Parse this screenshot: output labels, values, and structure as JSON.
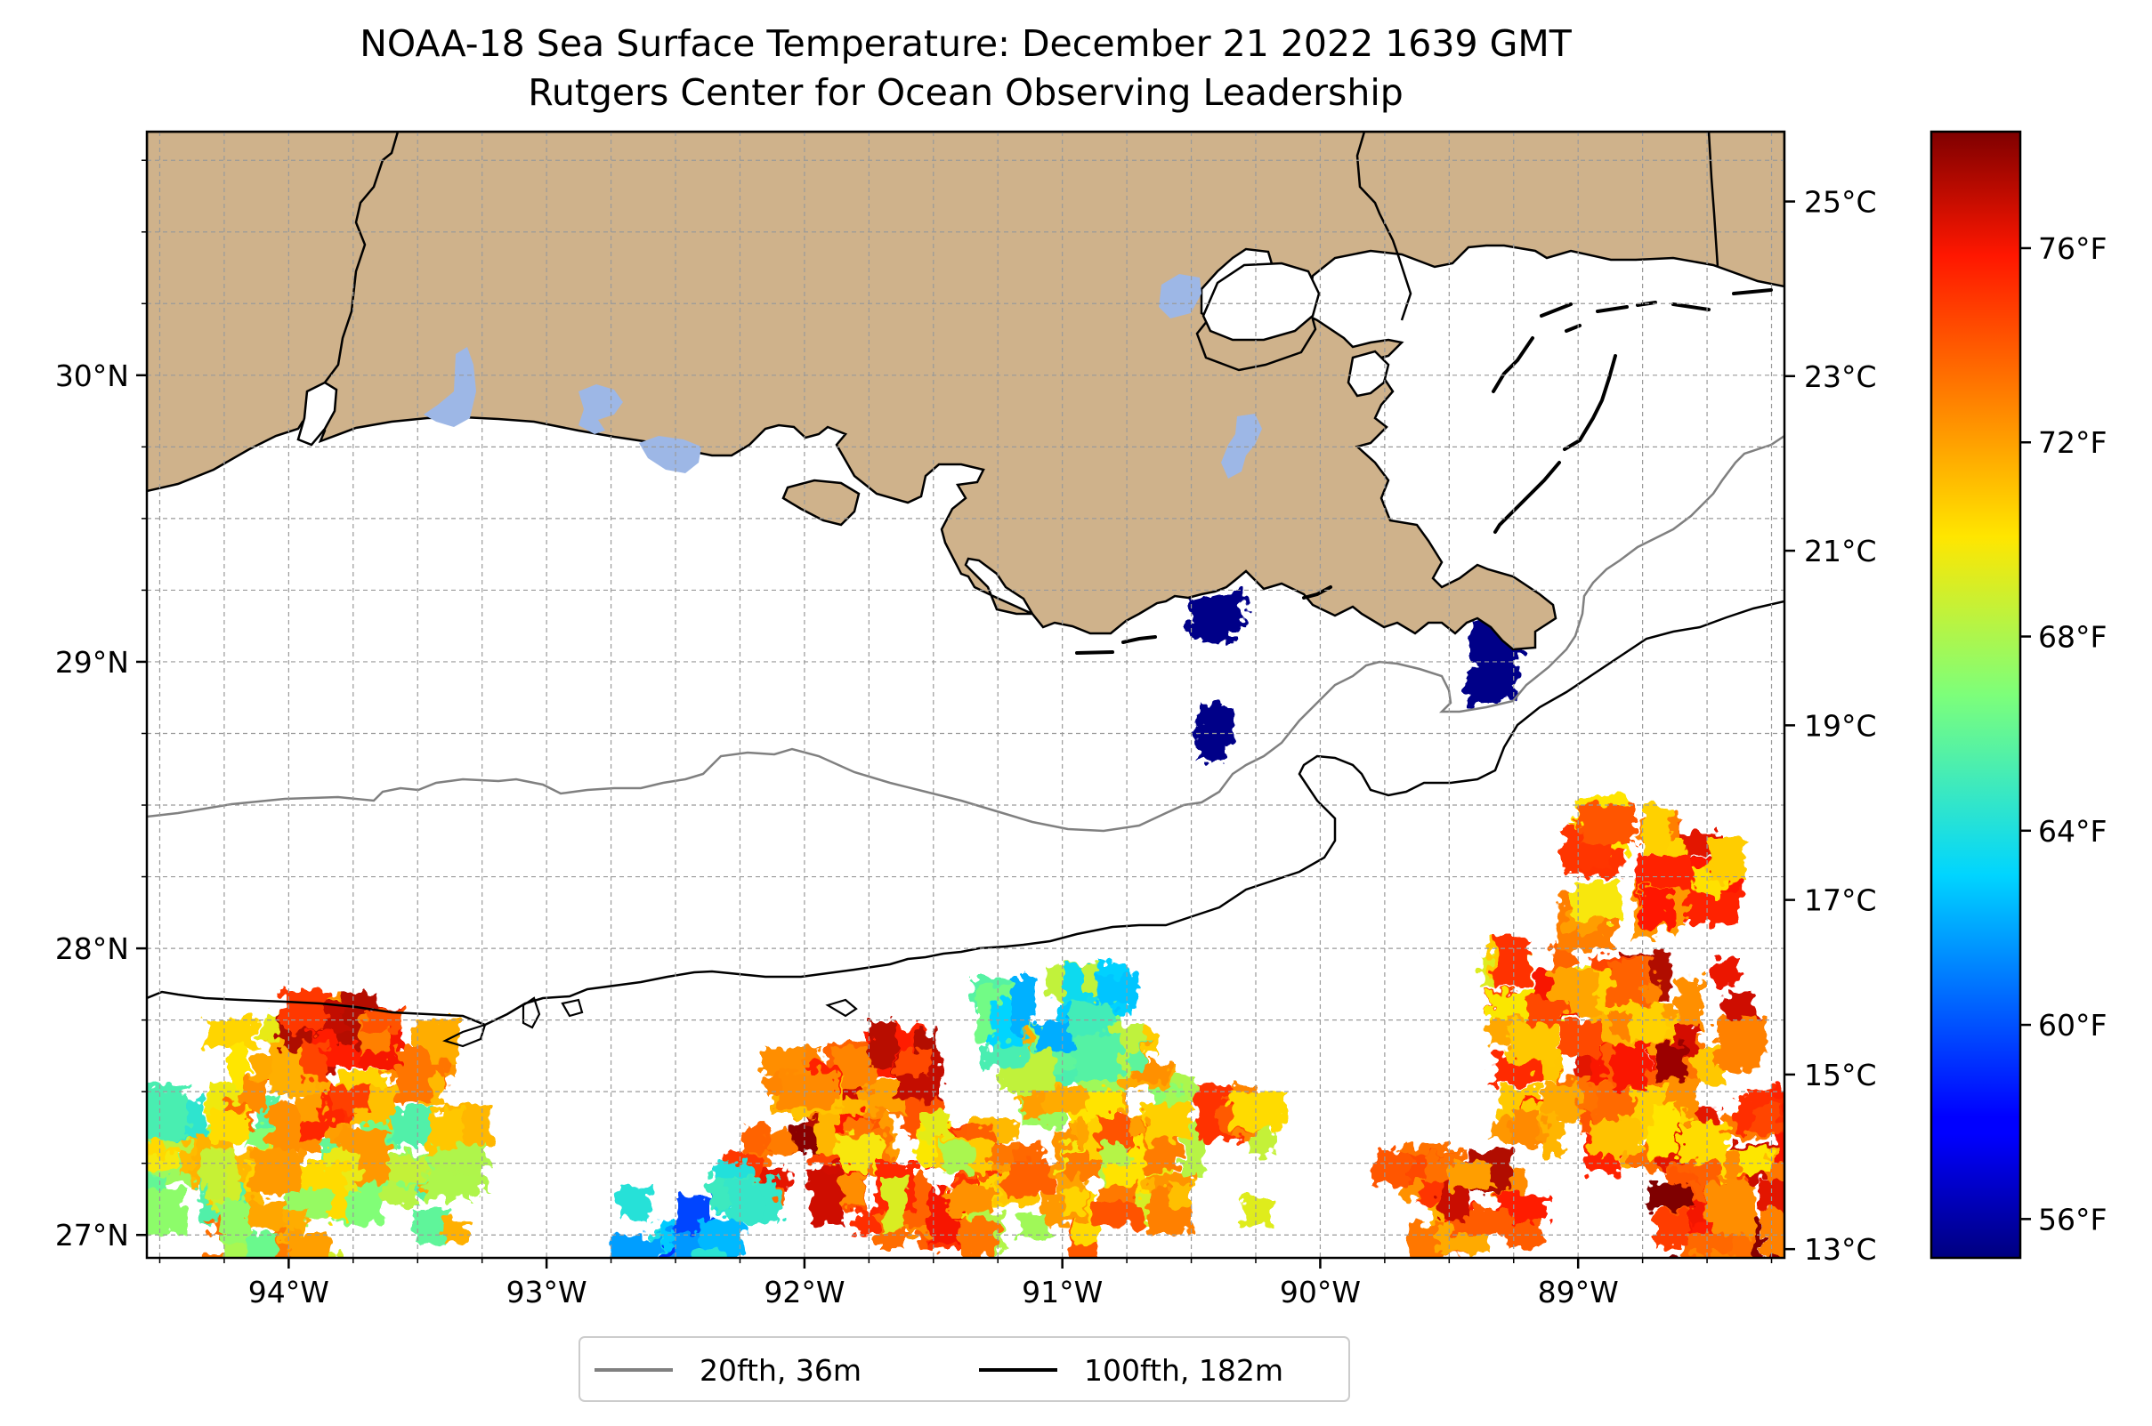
{
  "title": {
    "line1": "NOAA-18 Sea Surface Temperature: December 21 2022 1639 GMT",
    "line2": "Rutgers Center for Ocean Observing Leadership"
  },
  "map": {
    "region": "Northern Gulf of Mexico (Louisiana coast)",
    "lon_range": [
      -94.55,
      -88.2
    ],
    "lat_range": [
      26.92,
      30.85
    ],
    "lon_ticks": [
      {
        "value": -94,
        "label": "94°W"
      },
      {
        "value": -93,
        "label": "93°W"
      },
      {
        "value": -92,
        "label": "92°W"
      },
      {
        "value": -91,
        "label": "91°W"
      },
      {
        "value": -90,
        "label": "90°W"
      },
      {
        "value": -89,
        "label": "89°W"
      }
    ],
    "lat_ticks": [
      {
        "value": 27,
        "label": "27°N"
      },
      {
        "value": 28,
        "label": "28°N"
      },
      {
        "value": 29,
        "label": "29°N"
      },
      {
        "value": 30,
        "label": "30°N"
      }
    ],
    "gridlines": true,
    "land_color": "#cfb28b",
    "lake_color": "#9db7e6",
    "coastline_color": "#000000"
  },
  "legend": {
    "placement": "bottom-center",
    "items": [
      {
        "label": "20fth, 36m",
        "color": "#808080"
      },
      {
        "label": "100fth, 182m",
        "color": "#000000"
      }
    ]
  },
  "colorbar": {
    "colormap": "jet",
    "celsius_ticks": [
      {
        "value": 13,
        "label": "13°C"
      },
      {
        "value": 15,
        "label": "15°C"
      },
      {
        "value": 17,
        "label": "17°C"
      },
      {
        "value": 19,
        "label": "19°C"
      },
      {
        "value": 21,
        "label": "21°C"
      },
      {
        "value": 23,
        "label": "23°C"
      },
      {
        "value": 25,
        "label": "25°C"
      }
    ],
    "fahrenheit_ticks": [
      {
        "value": 56,
        "label": "56°F"
      },
      {
        "value": 60,
        "label": "60°F"
      },
      {
        "value": 64,
        "label": "64°F"
      },
      {
        "value": 68,
        "label": "68°F"
      },
      {
        "value": 72,
        "label": "72°F"
      },
      {
        "value": 76,
        "label": "76°F"
      }
    ],
    "range_celsius": [
      12.9,
      25.8
    ],
    "range_fahrenheit": [
      55.2,
      78.4
    ]
  },
  "chart_data": {
    "type": "heatmap",
    "title": "NOAA-18 Sea Surface Temperature: December 21 2022 1639 GMT",
    "subtitle": "Rutgers Center for Ocean Observing Leadership",
    "xlabel": "",
    "ylabel": "",
    "x_ticks": [
      "94°W",
      "93°W",
      "92°W",
      "91°W",
      "90°W",
      "89°W"
    ],
    "y_ticks": [
      "27°N",
      "28°N",
      "29°N",
      "30°N"
    ],
    "xlim": [
      -94.55,
      -88.2
    ],
    "ylim": [
      26.92,
      30.85
    ],
    "grid": true,
    "color_scale": "jet",
    "value_range_celsius": [
      12.9,
      25.8
    ],
    "legend": [
      "20fth, 36m",
      "100fth, 182m"
    ],
    "sst_patches": [
      {
        "lon": -94.35,
        "lat": 27.25,
        "temp_c": 20.0
      },
      {
        "lon": -93.95,
        "lat": 27.55,
        "temp_c": 22.5
      },
      {
        "lon": -93.7,
        "lat": 27.6,
        "temp_c": 23.5
      },
      {
        "lon": -93.55,
        "lat": 27.2,
        "temp_c": 20.5
      },
      {
        "lon": -94.1,
        "lat": 27.05,
        "temp_c": 21.0
      },
      {
        "lon": -92.0,
        "lat": 27.3,
        "temp_c": 24.0
      },
      {
        "lon": -91.8,
        "lat": 27.5,
        "temp_c": 23.5
      },
      {
        "lon": -91.5,
        "lat": 27.2,
        "temp_c": 22.5
      },
      {
        "lon": -91.15,
        "lat": 27.15,
        "temp_c": 21.5
      },
      {
        "lon": -90.85,
        "lat": 27.5,
        "temp_c": 21.0
      },
      {
        "lon": -90.5,
        "lat": 27.25,
        "temp_c": 22.0
      },
      {
        "lon": -89.5,
        "lat": 27.15,
        "temp_c": 23.5
      },
      {
        "lon": -88.95,
        "lat": 27.45,
        "temp_c": 23.0
      },
      {
        "lon": -88.6,
        "lat": 27.75,
        "temp_c": 23.5
      },
      {
        "lon": -88.4,
        "lat": 27.3,
        "temp_c": 23.0
      },
      {
        "lon": -88.35,
        "lat": 27.0,
        "temp_c": 24.5
      },
      {
        "lon": -89.0,
        "lat": 27.85,
        "temp_c": 22.5
      },
      {
        "lon": -88.7,
        "lat": 28.25,
        "temp_c": 23.0
      },
      {
        "lon": -90.4,
        "lat": 29.15,
        "temp_c": 13.0
      },
      {
        "lon": -90.42,
        "lat": 28.75,
        "temp_c": 13.0
      },
      {
        "lon": -89.35,
        "lat": 28.95,
        "temp_c": 13.0
      },
      {
        "lon": -89.3,
        "lat": 29.08,
        "temp_c": 13.0
      },
      {
        "lon": -91.0,
        "lat": 27.7,
        "temp_c": 18.5
      },
      {
        "lon": -92.45,
        "lat": 27.0,
        "temp_c": 16.5
      }
    ]
  }
}
